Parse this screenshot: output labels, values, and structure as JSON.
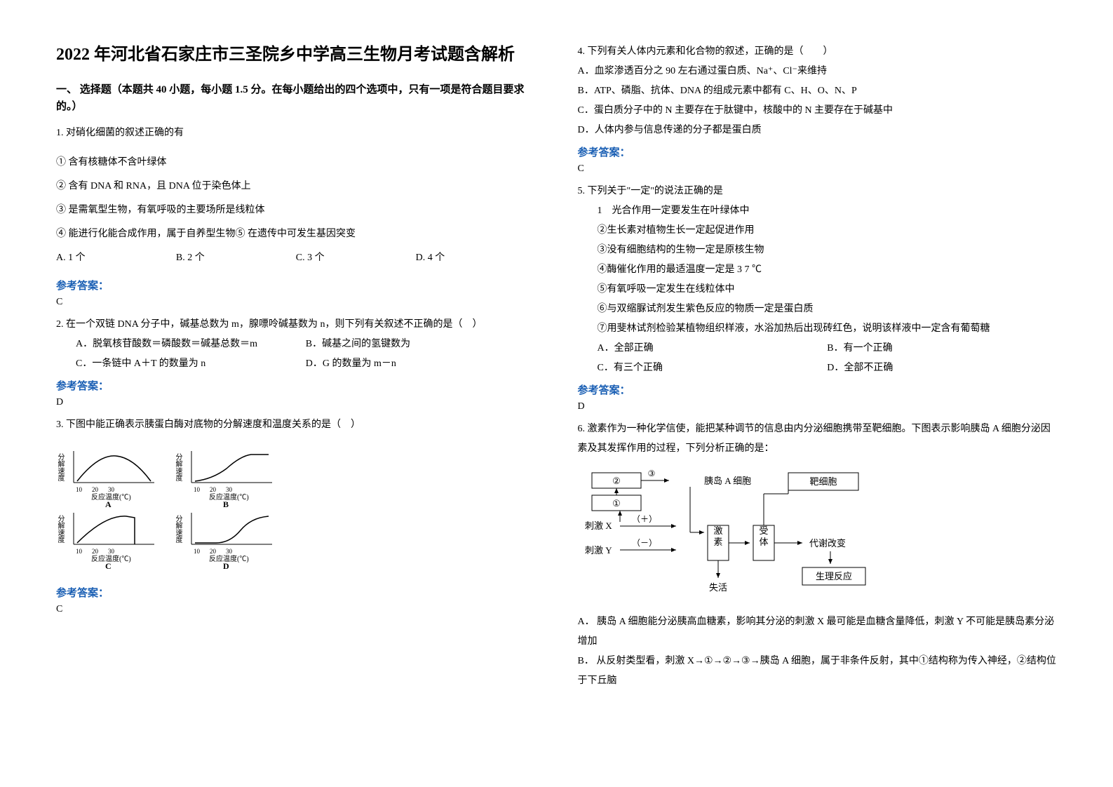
{
  "title": "2022 年河北省石家庄市三圣院乡中学高三生物月考试题含解析",
  "section1_header": "一、 选择题（本题共 40 小题，每小题 1.5 分。在每小题给出的四个选项中，只有一项是符合题目要求的。）",
  "q1": {
    "stem": "1. 对硝化细菌的叙述正确的有",
    "items": {
      "i1": "① 含有核糖体不含叶绿体",
      "i2": "② 含有 DNA 和 RNA，且 DNA 位于染色体上",
      "i3": "③ 是需氧型生物，有氧呼吸的主要场所是线粒体",
      "i4": "④ 能进行化能合成作用，属于自养型生物⑤ 在遗传中可发生基因突变"
    },
    "opts": {
      "a": "A. 1 个",
      "b": "B. 2 个",
      "c": "C. 3 个",
      "d": "D. 4 个"
    },
    "answer": "C"
  },
  "q2": {
    "stem": "2. 在一个双链 DNA 分子中，碱基总数为 m，腺嘌呤碱基数为 n，则下列有关叙述不正确的是（　）",
    "opts": {
      "a": "A．脱氧核苷酸数＝磷酸数＝碱基总数＝m",
      "b": "B．碱基之间的氢键数为",
      "c": "C．一条链中 A＋T 的数量为 n",
      "d": "D．G 的数量为 m－n"
    },
    "answer": "D"
  },
  "q3": {
    "stem": "3. 下图中能正确表示胰蛋白酶对底物的分解速度和温度关系的是（　）",
    "charts": {
      "ylabel": "分解速度",
      "xlabel": "反应温度(℃)",
      "ticks": [
        "10",
        "20",
        "30"
      ],
      "letters": {
        "a": "A",
        "b": "B",
        "c": "C",
        "d": "D"
      }
    },
    "answer": "C"
  },
  "q4": {
    "stem": "4. 下列有关人体内元素和化合物的叙述，正确的是（　　）",
    "opts": {
      "a": "A．血浆渗透百分之 90 左右通过蛋白质、Na⁺、Cl⁻来维持",
      "b": "B．ATP、磷脂、抗体、DNA 的组成元素中都有 C、H、O、N、P",
      "c": "C．蛋白质分子中的 N 主要存在于肽键中，核酸中的 N 主要存在于碱基中",
      "d": "D．人体内参与信息传递的分子都是蛋白质"
    },
    "answer": "C"
  },
  "q5": {
    "stem": "5. 下列关于\"一定\"的说法正确的是",
    "items": {
      "i1": "1　光合作用一定要发生在叶绿体中",
      "i2": "②生长素对植物生长一定起促进作用",
      "i3": "③没有细胞结构的生物一定是原核生物",
      "i4": "④酶催化作用的最适温度一定是 3 7 ℃",
      "i5": "⑤有氧呼吸一定发生在线粒体中",
      "i6": "⑥与双缩脲试剂发生紫色反应的物质一定是蛋白质",
      "i7": "⑦用斐林试剂检验某植物组织样液，水浴加热后出现砖红色，说明该样液中一定含有葡萄糖"
    },
    "opts": {
      "a": "A．全部正确",
      "b": "B．有一个正确",
      "c": "C．有三个正确",
      "d": "D．全部不正确"
    },
    "answer": "D"
  },
  "q6": {
    "stem": "6. 激素作为一种化学信使，能把某种调节的信息由内分泌细胞携带至靶细胞。下图表示影响胰岛 A 细胞分泌因素及其发挥作用的过程，下列分析正确的是：",
    "diagram": {
      "node1": "②",
      "node1_arrow": "③",
      "target1": "胰岛 A 细胞",
      "node2": "①",
      "stimX": "刺激 X",
      "stimY": "刺激 Y",
      "plus": "（＋）",
      "minus": "（－）",
      "hormone": "激素",
      "receptor": "受体",
      "target_cell": "靶细胞",
      "metabolic": "代谢改变",
      "phys": "生理反应",
      "inactive": "失活"
    },
    "opts": {
      "a": "A． 胰岛 A 细胞能分泌胰高血糖素，影响其分泌的刺激 X 最可能是血糖含量降低，刺激 Y 不可能是胰岛素分泌增加",
      "b": "B． 从反射类型看，刺激 X→①→②→③→胰岛 A 细胞，属于非条件反射，其中①结构称为传入神经，②结构位于下丘脑"
    }
  },
  "answer_label": "参考答案："
}
